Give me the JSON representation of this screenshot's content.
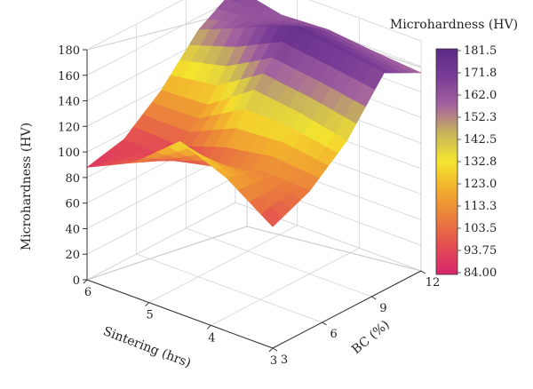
{
  "chart_data": {
    "type": "surface3d",
    "colorbar_title": "Microhardness (HV)",
    "colorbar_ticks": [
      "181.5",
      "171.8",
      "162.0",
      "152.3",
      "142.5",
      "132.8",
      "123.0",
      "113.3",
      "103.5",
      "93.75",
      "84.00"
    ],
    "colorbar_range": [
      84.0,
      181.5
    ],
    "colors": [
      "#d8266e",
      "#e34d52",
      "#ea7e3c",
      "#f2ae2e",
      "#f4e52e",
      "#c9b55a",
      "#a4629f",
      "#7a3d96",
      "#5b2a86"
    ],
    "zlabel": "Microhardness (HV)",
    "zlim": [
      0,
      180
    ],
    "z_ticks": [
      "0",
      "20",
      "40",
      "60",
      "80",
      "100",
      "120",
      "140",
      "160",
      "180"
    ],
    "xlabel": "Sintering (hrs)",
    "x_ticks": [
      "3",
      "4",
      "5",
      "6"
    ],
    "ylabel": "BC (%)",
    "y_ticks": [
      "3",
      "6",
      "9",
      "12"
    ],
    "x": [
      3,
      3.75,
      4.5,
      5.25,
      6
    ],
    "y": [
      3,
      5.25,
      7.5,
      9.75,
      12
    ],
    "z": [
      [
        95,
        108,
        132,
        170,
        155
      ],
      [
        120,
        110,
        140,
        175,
        158
      ],
      [
        135,
        100,
        145,
        180,
        162
      ],
      [
        105,
        92,
        120,
        165,
        160
      ],
      [
        88,
        95,
        118,
        150,
        168
      ]
    ]
  }
}
